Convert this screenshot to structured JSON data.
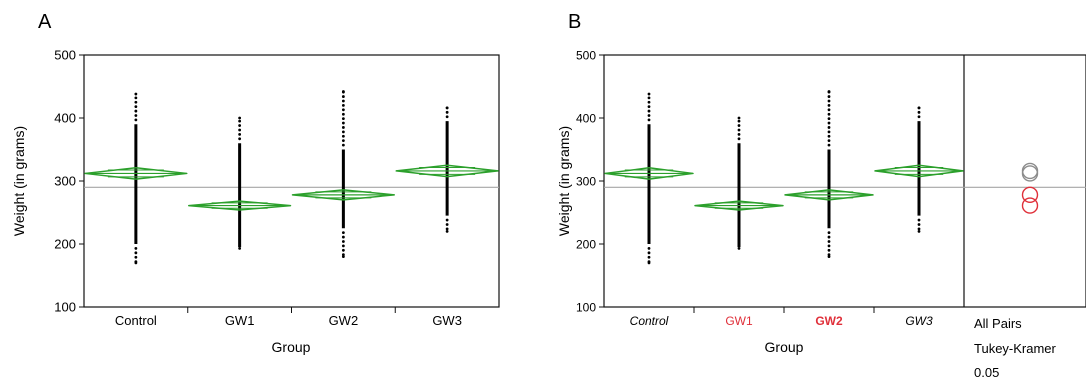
{
  "chart_data": [
    {
      "type": "scatter",
      "panel_label": "A",
      "xlabel": "Group",
      "ylabel": "Weight (in grams)",
      "ylim": [
        100,
        500
      ],
      "yticks": [
        100,
        200,
        300,
        400,
        500
      ],
      "categories": [
        "Control",
        "GW1",
        "GW2",
        "GW3"
      ],
      "grand_mean": 290,
      "groups": [
        {
          "name": "Control",
          "mean": 312,
          "ci": [
            303,
            321
          ],
          "min": 170,
          "max": 438,
          "dense_range": [
            200,
            390
          ]
        },
        {
          "name": "GW1",
          "mean": 261,
          "ci": [
            254,
            268
          ],
          "min": 193,
          "max": 400,
          "dense_range": [
            195,
            360
          ]
        },
        {
          "name": "GW2",
          "mean": 278,
          "ci": [
            270,
            286
          ],
          "min": 180,
          "max": 442,
          "dense_range": [
            225,
            350
          ]
        },
        {
          "name": "GW3",
          "mean": 316,
          "ci": [
            307,
            325
          ],
          "min": 220,
          "max": 416,
          "dense_range": [
            245,
            395
          ]
        }
      ],
      "colors": {
        "diamond": "#2ca02c",
        "points": "#000000",
        "grand_mean_line": "#a6a6a6"
      }
    },
    {
      "type": "scatter",
      "panel_label": "B",
      "xlabel": "Group",
      "ylabel": "Weight (in grams)",
      "ylim": [
        100,
        500
      ],
      "yticks": [
        100,
        200,
        300,
        400,
        500
      ],
      "categories": [
        "Control",
        "GW1",
        "GW2",
        "GW3"
      ],
      "category_styles": [
        {
          "color": "#000000",
          "italic": true,
          "bold": false
        },
        {
          "color": "#e0303a",
          "italic": false,
          "bold": false
        },
        {
          "color": "#e0303a",
          "italic": false,
          "bold": true
        },
        {
          "color": "#000000",
          "italic": true,
          "bold": false
        }
      ],
      "grand_mean": 290,
      "groups": [
        {
          "name": "Control",
          "mean": 312,
          "ci": [
            303,
            321
          ],
          "min": 170,
          "max": 438,
          "dense_range": [
            200,
            390
          ]
        },
        {
          "name": "GW1",
          "mean": 261,
          "ci": [
            254,
            268
          ],
          "min": 193,
          "max": 400,
          "dense_range": [
            195,
            360
          ]
        },
        {
          "name": "GW2",
          "mean": 278,
          "ci": [
            270,
            286
          ],
          "min": 180,
          "max": 442,
          "dense_range": [
            225,
            350
          ]
        },
        {
          "name": "GW3",
          "mean": 316,
          "ci": [
            307,
            325
          ],
          "min": 220,
          "max": 416,
          "dense_range": [
            245,
            395
          ]
        }
      ],
      "comparison_circles": [
        {
          "group": "Control",
          "center": 312,
          "color": "#8c8c8c"
        },
        {
          "group": "GW3",
          "center": 316,
          "color": "#8c8c8c"
        },
        {
          "group": "GW2",
          "center": 278,
          "color": "#e0303a"
        },
        {
          "group": "GW1",
          "center": 261,
          "color": "#e0303a"
        }
      ],
      "comparison_labels": [
        "All Pairs",
        "Tukey-Kramer",
        "0.05"
      ],
      "colors": {
        "diamond": "#2ca02c",
        "points": "#000000",
        "grand_mean_line": "#a6a6a6"
      }
    }
  ]
}
